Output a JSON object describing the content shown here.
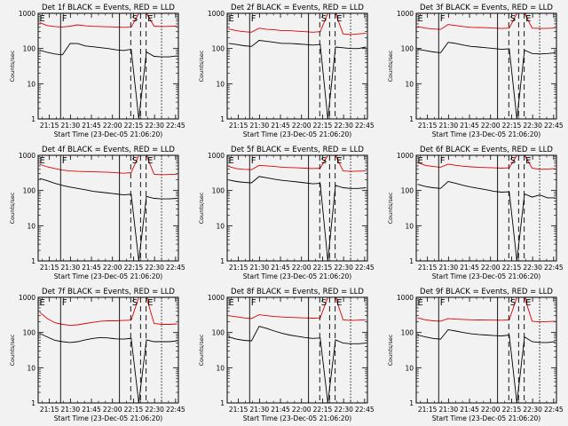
{
  "figure": {
    "background": "#f2f2f2",
    "curve_colors": {
      "black": "#000000",
      "red": "#e00000"
    }
  },
  "chart_data": [
    {
      "type": "line",
      "title": "Det 1f BLACK = Events, RED = LLD",
      "ylabel": "Counts/sec",
      "xlabel": "Start Time (23-Dec-05 21:06:20)",
      "y_scale": "log",
      "ylim": [
        1,
        1000
      ],
      "ytick_labels": [
        "1",
        "10",
        "100",
        "1000"
      ],
      "xtick_labels": [
        "21:15",
        "21:30",
        "21:45",
        "22:00",
        "22:15",
        "22:30",
        "22:45"
      ],
      "markers": [
        {
          "label": "E",
          "x": "21:07",
          "style": "solid"
        },
        {
          "label": "F",
          "x": "21:23",
          "style": "solid"
        },
        {
          "label": "S",
          "x": "22:13",
          "style": "dashed"
        },
        {
          "label": "E",
          "x": "22:24",
          "style": "dashed"
        }
      ],
      "extra_lines": [
        {
          "x": "22:05",
          "style": "solid"
        },
        {
          "x": "22:20",
          "style": "dashed"
        },
        {
          "x": "22:35",
          "style": "dotted"
        }
      ],
      "series": [
        {
          "name": "Events",
          "color": "#000000",
          "values": [
            90,
            78,
            70,
            66,
            140,
            138,
            118,
            112,
            106,
            100,
            92,
            88,
            95,
            1,
            80,
            60,
            58,
            58,
            62
          ]
        },
        {
          "name": "LLD",
          "color": "#e00000",
          "values": [
            540,
            450,
            420,
            410,
            430,
            470,
            440,
            425,
            420,
            415,
            410,
            400,
            405,
            1000,
            1000,
            430,
            420,
            425,
            430
          ]
        }
      ]
    },
    {
      "type": "line",
      "title": "Det 2f BLACK = Events, RED = LLD",
      "ylabel": "Counts/sec",
      "xlabel": "Start Time (23-Dec-05 21:06:20)",
      "y_scale": "log",
      "ylim": [
        1,
        1000
      ],
      "ytick_labels": [
        "1",
        "10",
        "100",
        "1000"
      ],
      "xtick_labels": [
        "21:15",
        "21:30",
        "21:45",
        "22:00",
        "22:15",
        "22:30",
        "22:45"
      ],
      "markers": [
        {
          "label": "E",
          "x": "21:07",
          "style": "solid"
        },
        {
          "label": "F",
          "x": "21:23",
          "style": "solid"
        },
        {
          "label": "S",
          "x": "22:13",
          "style": "dashed"
        },
        {
          "label": "E",
          "x": "22:24",
          "style": "dashed"
        }
      ],
      "extra_lines": [
        {
          "x": "22:05",
          "style": "solid"
        },
        {
          "x": "22:20",
          "style": "dashed"
        },
        {
          "x": "22:35",
          "style": "dotted"
        }
      ],
      "series": [
        {
          "name": "Events",
          "color": "#000000",
          "values": [
            140,
            130,
            120,
            115,
            170,
            160,
            150,
            140,
            140,
            135,
            130,
            125,
            130,
            1,
            110,
            105,
            100,
            100,
            110
          ]
        },
        {
          "name": "LLD",
          "color": "#e00000",
          "values": [
            360,
            320,
            300,
            290,
            380,
            350,
            340,
            320,
            320,
            310,
            300,
            290,
            300,
            1000,
            1000,
            260,
            250,
            260,
            270
          ]
        }
      ]
    },
    {
      "type": "line",
      "title": "Det 3f BLACK = Events, RED = LLD",
      "ylabel": "Counts/sec",
      "xlabel": "Start Time (23-Dec-05 21:06:20)",
      "y_scale": "log",
      "ylim": [
        1,
        1000
      ],
      "ytick_labels": [
        "1",
        "10",
        "100",
        "1000"
      ],
      "xtick_labels": [
        "21:15",
        "21:30",
        "21:45",
        "22:00",
        "22:15",
        "22:30",
        "22:45"
      ],
      "markers": [
        {
          "label": "E",
          "x": "21:07",
          "style": "solid"
        },
        {
          "label": "F",
          "x": "21:23",
          "style": "solid"
        },
        {
          "label": "S",
          "x": "22:13",
          "style": "dashed"
        },
        {
          "label": "E",
          "x": "22:24",
          "style": "dashed"
        }
      ],
      "extra_lines": [
        {
          "x": "22:05",
          "style": "solid"
        },
        {
          "x": "22:20",
          "style": "dashed"
        },
        {
          "x": "22:35",
          "style": "dotted"
        }
      ],
      "series": [
        {
          "name": "Events",
          "color": "#000000",
          "values": [
            95,
            88,
            80,
            76,
            150,
            140,
            125,
            115,
            110,
            105,
            100,
            95,
            98,
            1,
            90,
            72,
            70,
            72,
            75
          ]
        },
        {
          "name": "LLD",
          "color": "#e00000",
          "values": [
            420,
            380,
            360,
            350,
            480,
            450,
            420,
            400,
            395,
            390,
            380,
            370,
            380,
            1000,
            1000,
            380,
            370,
            375,
            380
          ]
        }
      ]
    },
    {
      "type": "line",
      "title": "Det 4f BLACK = Events, RED = LLD",
      "ylabel": "Counts/sec",
      "xlabel": "Start Time (23-Dec-05 21:06:20)",
      "y_scale": "log",
      "ylim": [
        1,
        1000
      ],
      "ytick_labels": [
        "1",
        "10",
        "100",
        "1000"
      ],
      "xtick_labels": [
        "21:15",
        "21:30",
        "21:45",
        "22:00",
        "22:15",
        "22:30",
        "22:45"
      ],
      "markers": [
        {
          "label": "E",
          "x": "21:07",
          "style": "solid"
        },
        {
          "label": "F",
          "x": "21:23",
          "style": "solid"
        },
        {
          "label": "S",
          "x": "22:13",
          "style": "dashed"
        },
        {
          "label": "E",
          "x": "22:24",
          "style": "dashed"
        }
      ],
      "extra_lines": [
        {
          "x": "22:05",
          "style": "solid"
        },
        {
          "x": "22:20",
          "style": "dashed"
        },
        {
          "x": "22:35",
          "style": "dotted"
        }
      ],
      "series": [
        {
          "name": "Events",
          "color": "#000000",
          "values": [
            220,
            190,
            160,
            140,
            125,
            115,
            105,
            95,
            90,
            85,
            80,
            75,
            78,
            1,
            68,
            60,
            58,
            58,
            60
          ]
        },
        {
          "name": "LLD",
          "color": "#e00000",
          "values": [
            560,
            470,
            420,
            380,
            360,
            350,
            345,
            340,
            335,
            330,
            320,
            310,
            320,
            1000,
            1000,
            290,
            280,
            285,
            290
          ]
        }
      ]
    },
    {
      "type": "line",
      "title": "Det 5f BLACK = Events, RED = LLD",
      "ylabel": "Counts/sec",
      "xlabel": "Start Time (23-Dec-05 21:06:20)",
      "y_scale": "log",
      "ylim": [
        1,
        1000
      ],
      "ytick_labels": [
        "1",
        "10",
        "100",
        "1000"
      ],
      "xtick_labels": [
        "21:15",
        "21:30",
        "21:45",
        "22:00",
        "22:15",
        "22:30",
        "22:45"
      ],
      "markers": [
        {
          "label": "E",
          "x": "21:07",
          "style": "solid"
        },
        {
          "label": "F",
          "x": "21:23",
          "style": "solid"
        },
        {
          "label": "S",
          "x": "22:13",
          "style": "dashed"
        },
        {
          "label": "E",
          "x": "22:24",
          "style": "dashed"
        }
      ],
      "extra_lines": [
        {
          "x": "22:05",
          "style": "solid"
        },
        {
          "x": "22:20",
          "style": "dashed"
        },
        {
          "x": "22:35",
          "style": "dotted"
        }
      ],
      "series": [
        {
          "name": "Events",
          "color": "#000000",
          "values": [
            200,
            180,
            170,
            165,
            250,
            230,
            210,
            195,
            185,
            175,
            165,
            155,
            160,
            1,
            140,
            120,
            115,
            115,
            120
          ]
        },
        {
          "name": "LLD",
          "color": "#e00000",
          "values": [
            480,
            420,
            400,
            390,
            520,
            500,
            480,
            460,
            450,
            440,
            430,
            420,
            430,
            1000,
            1000,
            360,
            350,
            355,
            360
          ]
        }
      ]
    },
    {
      "type": "line",
      "title": "Det 6f BLACK = Events, RED = LLD",
      "ylabel": "Counts/sec",
      "xlabel": "Start Time (23-Dec-05 21:06:20)",
      "y_scale": "log",
      "ylim": [
        1,
        1000
      ],
      "ytick_labels": [
        "1",
        "10",
        "100",
        "1000"
      ],
      "xtick_labels": [
        "21:15",
        "21:30",
        "21:45",
        "22:00",
        "22:15",
        "22:30",
        "22:45"
      ],
      "markers": [
        {
          "label": "E",
          "x": "21:07",
          "style": "solid"
        },
        {
          "label": "F",
          "x": "21:23",
          "style": "solid"
        },
        {
          "label": "S",
          "x": "22:13",
          "style": "dashed"
        },
        {
          "label": "E",
          "x": "22:24",
          "style": "dashed"
        }
      ],
      "extra_lines": [
        {
          "x": "22:05",
          "style": "solid"
        },
        {
          "x": "22:20",
          "style": "dashed"
        },
        {
          "x": "22:35",
          "style": "dotted"
        }
      ],
      "series": [
        {
          "name": "Events",
          "color": "#000000",
          "values": [
            150,
            130,
            120,
            115,
            180,
            160,
            140,
            125,
            115,
            105,
            95,
            90,
            92,
            1,
            80,
            65,
            75,
            62,
            62
          ]
        },
        {
          "name": "LLD",
          "color": "#e00000",
          "values": [
            620,
            520,
            480,
            460,
            560,
            520,
            490,
            470,
            460,
            450,
            440,
            430,
            440,
            1000,
            1000,
            430,
            400,
            410,
            420
          ]
        }
      ]
    },
    {
      "type": "line",
      "title": "Det 7f BLACK = Events, RED = LLD",
      "ylabel": "Counts/sec",
      "xlabel": "Start Time (23-Dec-05 21:06:20)",
      "y_scale": "log",
      "ylim": [
        1,
        1000
      ],
      "ytick_labels": [
        "1",
        "10",
        "100",
        "1000"
      ],
      "xtick_labels": [
        "21:15",
        "21:30",
        "21:45",
        "22:00",
        "22:15",
        "22:30",
        "22:45"
      ],
      "markers": [
        {
          "label": "E",
          "x": "21:07",
          "style": "solid"
        },
        {
          "label": "F",
          "x": "21:23",
          "style": "solid"
        },
        {
          "label": "S",
          "x": "22:13",
          "style": "dashed"
        },
        {
          "label": "E",
          "x": "22:24",
          "style": "dashed"
        }
      ],
      "extra_lines": [
        {
          "x": "22:05",
          "style": "solid"
        },
        {
          "x": "22:20",
          "style": "dashed"
        },
        {
          "x": "22:35",
          "style": "dotted"
        }
      ],
      "series": [
        {
          "name": "Events",
          "color": "#000000",
          "values": [
            95,
            75,
            60,
            55,
            52,
            55,
            62,
            68,
            72,
            70,
            66,
            65,
            68,
            1,
            62,
            55,
            55,
            55,
            58
          ]
        },
        {
          "name": "LLD",
          "color": "#e00000",
          "values": [
            380,
            250,
            190,
            170,
            160,
            165,
            180,
            195,
            210,
            215,
            215,
            220,
            225,
            1000,
            1000,
            180,
            170,
            170,
            175
          ]
        }
      ]
    },
    {
      "type": "line",
      "title": "Det 8f BLACK = Events, RED = LLD",
      "ylabel": "Counts/sec",
      "xlabel": "Start Time (23-Dec-05 21:06:20)",
      "y_scale": "log",
      "ylim": [
        1,
        1000
      ],
      "ytick_labels": [
        "1",
        "10",
        "100",
        "1000"
      ],
      "xtick_labels": [
        "21:15",
        "21:30",
        "21:45",
        "22:00",
        "22:15",
        "22:30",
        "22:45"
      ],
      "markers": [
        {
          "label": "E",
          "x": "21:07",
          "style": "solid"
        },
        {
          "label": "F",
          "x": "21:23",
          "style": "solid"
        },
        {
          "label": "S",
          "x": "22:13",
          "style": "dashed"
        },
        {
          "label": "E",
          "x": "22:24",
          "style": "dashed"
        }
      ],
      "extra_lines": [
        {
          "x": "22:05",
          "style": "solid"
        },
        {
          "x": "22:20",
          "style": "dashed"
        },
        {
          "x": "22:35",
          "style": "dotted"
        }
      ],
      "series": [
        {
          "name": "Events",
          "color": "#000000",
          "values": [
            75,
            65,
            60,
            58,
            150,
            130,
            110,
            95,
            85,
            78,
            72,
            68,
            70,
            1,
            62,
            50,
            48,
            48,
            50
          ]
        },
        {
          "name": "LLD",
          "color": "#e00000",
          "values": [
            300,
            280,
            260,
            250,
            320,
            300,
            285,
            275,
            270,
            265,
            260,
            255,
            260,
            1000,
            1000,
            230,
            220,
            225,
            230
          ]
        }
      ]
    },
    {
      "type": "line",
      "title": "Det 9f BLACK = Events, RED = LLD",
      "ylabel": "Counts/sec",
      "xlabel": "Start Time (23-Dec-05 21:06:20)",
      "y_scale": "log",
      "ylim": [
        1,
        1000
      ],
      "ytick_labels": [
        "1",
        "10",
        "100",
        "1000"
      ],
      "xtick_labels": [
        "21:15",
        "21:30",
        "21:45",
        "22:00",
        "22:15",
        "22:30",
        "22:45"
      ],
      "markers": [
        {
          "label": "E",
          "x": "21:07",
          "style": "solid"
        },
        {
          "label": "F",
          "x": "21:23",
          "style": "solid"
        },
        {
          "label": "S",
          "x": "22:13",
          "style": "dashed"
        },
        {
          "label": "E",
          "x": "22:24",
          "style": "dashed"
        }
      ],
      "extra_lines": [
        {
          "x": "22:05",
          "style": "solid"
        },
        {
          "x": "22:20",
          "style": "dashed"
        },
        {
          "x": "22:35",
          "style": "dotted"
        }
      ],
      "series": [
        {
          "name": "Events",
          "color": "#000000",
          "values": [
            85,
            75,
            68,
            65,
            120,
            110,
            100,
            92,
            88,
            85,
            82,
            80,
            85,
            1,
            75,
            55,
            52,
            52,
            55
          ]
        },
        {
          "name": "LLD",
          "color": "#e00000",
          "values": [
            260,
            230,
            215,
            210,
            250,
            240,
            235,
            230,
            228,
            226,
            225,
            224,
            230,
            1000,
            1000,
            210,
            200,
            205,
            210
          ]
        }
      ]
    }
  ]
}
